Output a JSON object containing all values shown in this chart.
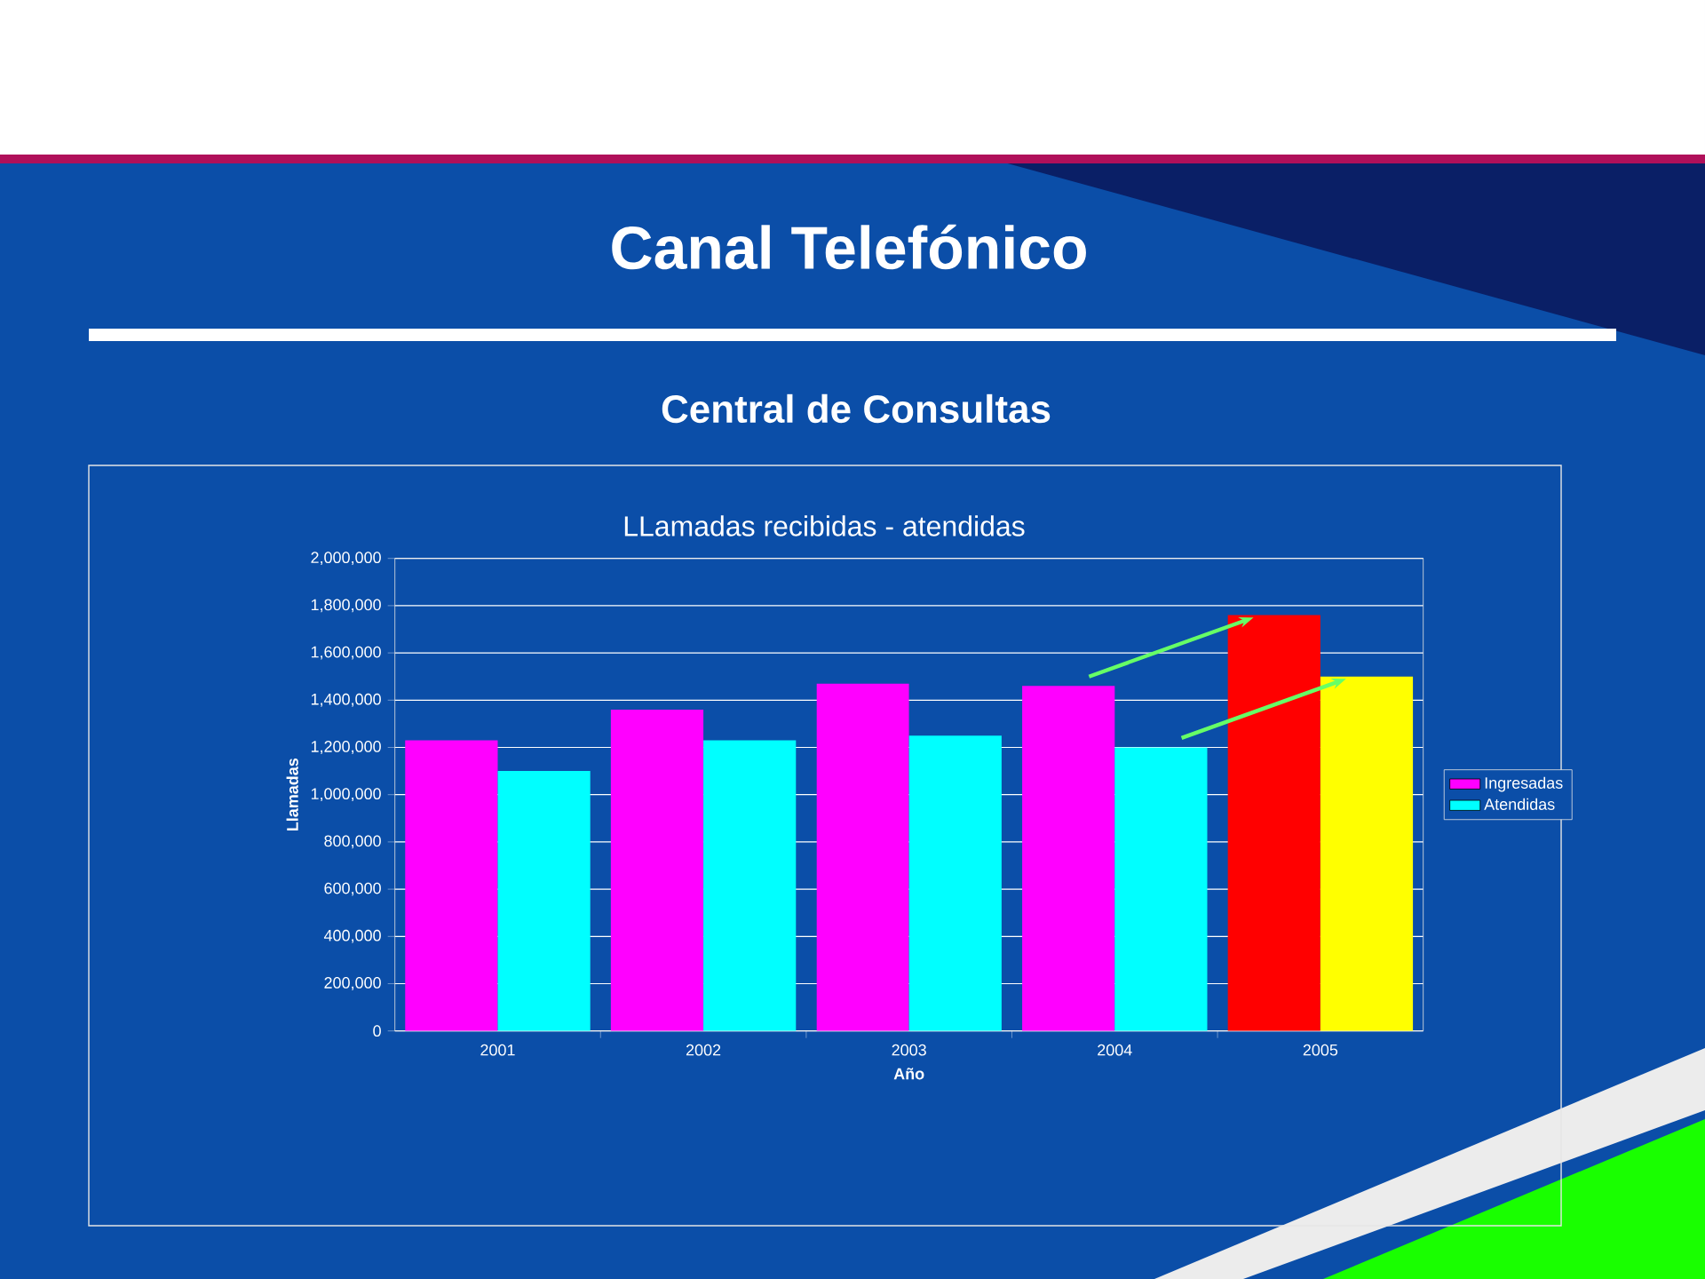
{
  "chart_data": {
    "type": "bar",
    "title": "Canal Telefónico",
    "subtitle": "Central de Consultas",
    "annotations": [
      "LLamadas recibidas - atendidas"
    ],
    "xlabel": "Año",
    "ylabel": "Llamadas",
    "categories": [
      "2001",
      "2002",
      "2003",
      "2004",
      "2005"
    ],
    "series": [
      {
        "name": "Ingresadas",
        "color": "#ff00ff",
        "colors": [
          "#ff00ff",
          "#ff00ff",
          "#ff00ff",
          "#ff00ff",
          "#ff0000"
        ],
        "values": [
          1230000,
          1360000,
          1470000,
          1460000,
          1760000
        ]
      },
      {
        "name": "Atendidas",
        "color": "#00ffff",
        "colors": [
          "#00ffff",
          "#00ffff",
          "#00ffff",
          "#00ffff",
          "#ffff00"
        ],
        "values": [
          1100000,
          1230000,
          1250000,
          1200000,
          1500000
        ]
      }
    ],
    "ylim": [
      0,
      2000000
    ],
    "yticks": [
      0,
      {
        "value": 200000,
        "label": "200,000"
      },
      {
        "value": 400000,
        "label": "400,000"
      },
      {
        "value": 600000,
        "label": "600,000"
      },
      {
        "value": 800000,
        "label": "800,000"
      },
      {
        "value": 1000000,
        "label": "1,000,000"
      },
      {
        "value": 1200000,
        "label": "1,200,000"
      },
      {
        "value": 1400000,
        "label": "1,400,000"
      },
      {
        "value": 1600000,
        "label": "1,600,000"
      },
      {
        "value": 1800000,
        "label": "1,800,000"
      },
      {
        "value": 2000000,
        "label": "2,000,000"
      }
    ],
    "grid": "y",
    "legend": "right"
  }
}
